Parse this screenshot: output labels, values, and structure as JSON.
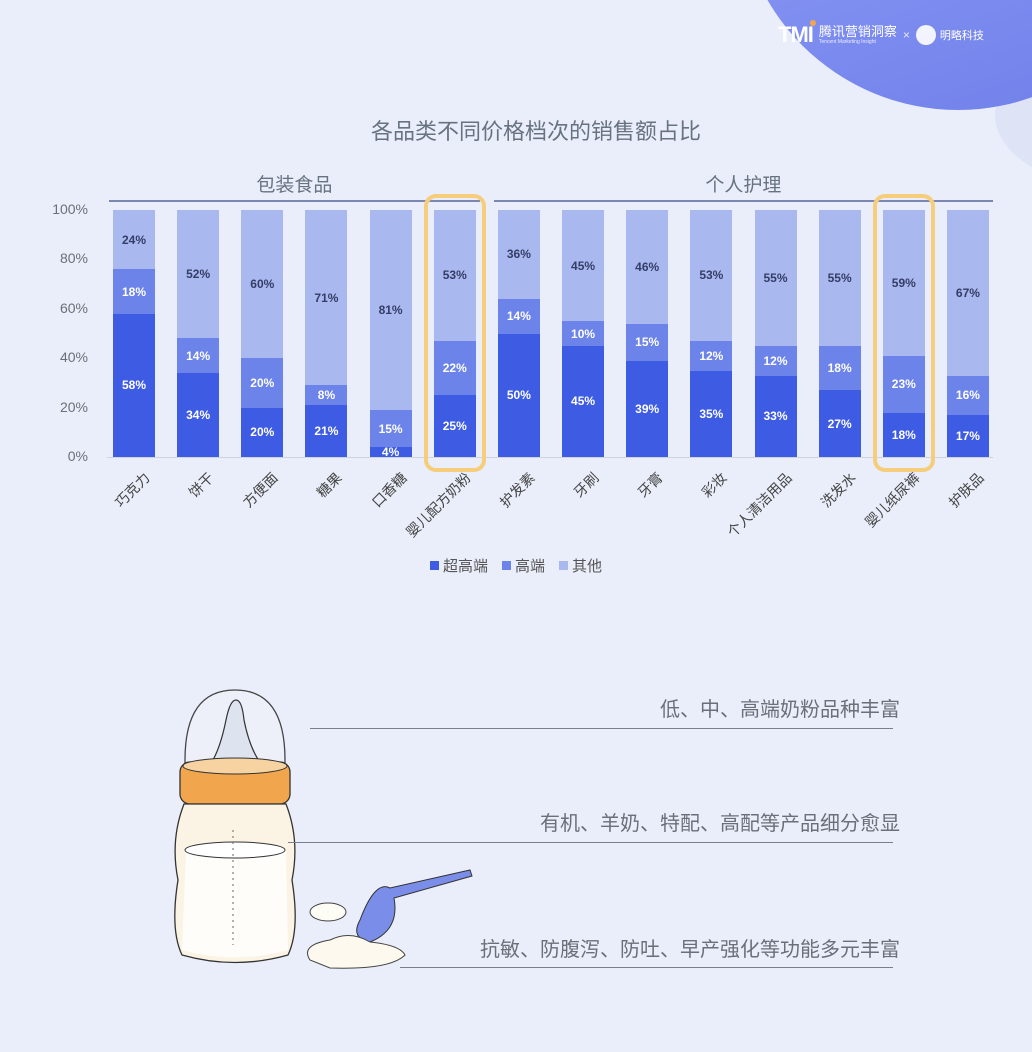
{
  "header": {
    "brand_logo": "TMI",
    "brand_cn": "腾讯营销洞察",
    "brand_en": "Tencent Marketing Insight",
    "separator": "×",
    "partner": "明略科技"
  },
  "chart_data": {
    "type": "bar",
    "stacked": true,
    "percent": true,
    "title": "各品类不同价格档次的销售额占比",
    "groups": [
      {
        "label": "包装食品",
        "categories": [
          "巧克力",
          "饼干",
          "方便面",
          "糖果",
          "口香糖",
          "婴儿配方奶粉"
        ]
      },
      {
        "label": "个人护理",
        "categories": [
          "护发素",
          "牙刷",
          "牙膏",
          "彩妆",
          "个人清洁用品",
          "洗发水",
          "婴儿纸尿裤",
          "护肤品"
        ]
      }
    ],
    "categories": [
      "巧克力",
      "饼干",
      "方便面",
      "糖果",
      "口香糖",
      "婴儿配方奶粉",
      "护发素",
      "牙刷",
      "牙膏",
      "彩妆",
      "个人清洁用品",
      "洗发水",
      "婴儿纸尿裤",
      "护肤品"
    ],
    "series": [
      {
        "name": "超高端",
        "color": "#3e5be4",
        "values": [
          58,
          34,
          20,
          21,
          4,
          25,
          50,
          45,
          39,
          35,
          33,
          27,
          18,
          17
        ]
      },
      {
        "name": "高端",
        "color": "#6c83ea",
        "values": [
          18,
          14,
          20,
          8,
          15,
          22,
          14,
          10,
          15,
          12,
          12,
          18,
          23,
          16
        ]
      },
      {
        "name": "其他",
        "color": "#aab8f0",
        "values": [
          24,
          52,
          60,
          71,
          81,
          53,
          36,
          45,
          46,
          53,
          55,
          55,
          59,
          67
        ]
      }
    ],
    "yticks": [
      "0%",
      "20%",
      "40%",
      "60%",
      "80%",
      "100%"
    ],
    "ylim": [
      0,
      100
    ],
    "xlabel": "",
    "ylabel": "",
    "grid": false,
    "legend_position": "bottom",
    "highlighted": [
      "婴儿配方奶粉",
      "婴儿纸尿裤"
    ],
    "highlight_color": "#f5cd7b"
  },
  "legend": [
    {
      "label": "超高端",
      "color": "#3e5be4"
    },
    {
      "label": "高端",
      "color": "#6c83ea"
    },
    {
      "label": "其他",
      "color": "#aab8f0"
    }
  ],
  "notes": [
    "低、中、高端奶粉品种丰富",
    "有机、羊奶、特配、高配等产品细分愈显",
    "抗敏、防腹泻、防吐、早产强化等功能多元丰富"
  ]
}
